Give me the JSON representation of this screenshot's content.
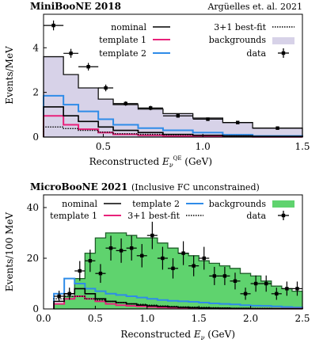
{
  "chart_data": [
    {
      "type": "step",
      "title": "MiniBooNE 2018",
      "subtitle": "Argüelles et. al. 2021",
      "xlabel": "Reconstructed E_ν^QE (GeV)",
      "ylabel": "Events/MeV",
      "xlim": [
        0.2,
        1.5
      ],
      "ylim": [
        0,
        5.5
      ],
      "xticks": [
        0.5,
        1.0,
        1.5
      ],
      "xtick_labels": [
        "0.5",
        "1.0",
        "1.5"
      ],
      "yticks": [
        0,
        2,
        4
      ],
      "ytick_labels": [
        "0",
        "2",
        "4"
      ],
      "bin_edges": [
        0.2,
        0.3,
        0.375,
        0.475,
        0.55,
        0.675,
        0.8,
        0.95,
        1.1,
        1.25,
        1.5
      ],
      "backgrounds": [
        3.6,
        2.8,
        2.2,
        1.7,
        1.45,
        1.25,
        1.05,
        0.85,
        0.65,
        0.4
      ],
      "nominal": [
        1.35,
        0.95,
        0.7,
        0.45,
        0.3,
        0.2,
        0.12,
        0.08,
        0.05,
        0.03
      ],
      "template_1": [
        0.95,
        0.55,
        0.35,
        0.2,
        0.12,
        0.08,
        0.04,
        0.03,
        0.02,
        0.01
      ],
      "template_2": [
        1.85,
        1.45,
        1.15,
        0.8,
        0.55,
        0.4,
        0.3,
        0.2,
        0.1,
        0.05
      ],
      "best_fit": [
        0.45,
        0.38,
        0.3,
        0.22,
        0.15,
        0.12,
        0.1,
        0.08,
        0.05,
        0.03
      ],
      "data": {
        "x": [
          0.25,
          0.3375,
          0.425,
          0.5125,
          0.6125,
          0.7375,
          0.875,
          1.025,
          1.175,
          1.375
        ],
        "y": [
          5.0,
          3.75,
          3.15,
          2.2,
          1.5,
          1.3,
          0.95,
          0.8,
          0.65,
          0.4
        ],
        "xerr": [
          0.05,
          0.0375,
          0.05,
          0.0375,
          0.0625,
          0.0625,
          0.075,
          0.075,
          0.075,
          0.125
        ],
        "yerr": [
          0.22,
          0.2,
          0.17,
          0.15,
          0.1,
          0.1,
          0.08,
          0.07,
          0.06,
          0.04
        ]
      },
      "legend": {
        "left": [
          {
            "label": "nominal",
            "color": "#000000",
            "style": "line"
          },
          {
            "label": "template 1",
            "color": "#e8217a",
            "style": "line"
          },
          {
            "label": "template 2",
            "color": "#2f8ce8",
            "style": "line"
          }
        ],
        "right": [
          {
            "label": "3+1 best-fit",
            "color": "#000000",
            "style": "dotted"
          },
          {
            "label": "backgrounds",
            "color": "#d7d2e8",
            "style": "patch"
          },
          {
            "label": "data",
            "color": "#000000",
            "style": "errorbar"
          }
        ]
      },
      "colors": {
        "backgrounds_fill": "#d7d2e8",
        "backgrounds_edge": "#111111"
      }
    },
    {
      "type": "step",
      "title": "MicroBooNE 2021",
      "subtitle": "(Inclusive FC unconstrained)",
      "xlabel": "Reconstructed E_ν (GeV)",
      "ylabel": "Events/100 MeV",
      "xlim": [
        0.0,
        2.5
      ],
      "ylim": [
        0,
        45
      ],
      "xticks": [
        0.0,
        0.5,
        1.0,
        1.5,
        2.0,
        2.5
      ],
      "xtick_labels": [
        "0.0",
        "0.5",
        "1.0",
        "1.5",
        "2.0",
        "2.5"
      ],
      "yticks": [
        0,
        20,
        40
      ],
      "ytick_labels": [
        "0",
        "20",
        "40"
      ],
      "bin_edges": [
        0.1,
        0.2,
        0.3,
        0.4,
        0.5,
        0.6,
        0.7,
        0.8,
        0.9,
        1.0,
        1.1,
        1.2,
        1.3,
        1.4,
        1.5,
        1.6,
        1.7,
        1.8,
        1.9,
        2.0,
        2.1,
        2.2,
        2.3,
        2.4,
        2.5
      ],
      "backgrounds": [
        2,
        5,
        12,
        22,
        28,
        30,
        30,
        29,
        28,
        28,
        26,
        24,
        22,
        21,
        19,
        18,
        17,
        16,
        14,
        13,
        11,
        9,
        8,
        7
      ],
      "nominal": [
        3,
        6,
        8,
        6,
        4,
        3,
        2.5,
        2,
        1.5,
        1.2,
        1,
        0.8,
        0.6,
        0.5,
        0.4,
        0.3,
        0.3,
        0.2,
        0.2,
        0.1,
        0.1,
        0.1,
        0.1,
        0.1
      ],
      "template_1": [
        2,
        4,
        5,
        4,
        3,
        2,
        1.5,
        1.2,
        1,
        0.8,
        0.6,
        0.5,
        0.4,
        0.3,
        0.2,
        0.2,
        0.1,
        0.1,
        0.1,
        0.1,
        0.1,
        0.1,
        0.1,
        0.1
      ],
      "template_2": [
        6,
        12,
        10,
        8,
        7,
        6,
        5.5,
        5,
        4.5,
        4,
        3.5,
        3.2,
        3,
        2.8,
        2.5,
        2.2,
        2,
        1.8,
        1.5,
        1.3,
        1.2,
        1,
        0.8,
        0.6
      ],
      "best_fit": [
        4,
        5,
        5,
        4,
        3.5,
        3,
        2.5,
        2,
        1.8,
        1.5,
        1.2,
        1,
        0.8,
        0.7,
        0.6,
        0.5,
        0.4,
        0.3,
        0.3,
        0.2,
        0.2,
        0.1,
        0.1,
        0.1
      ],
      "data": {
        "x": [
          0.15,
          0.25,
          0.35,
          0.45,
          0.55,
          0.65,
          0.75,
          0.85,
          0.95,
          1.05,
          1.15,
          1.25,
          1.35,
          1.45,
          1.55,
          1.65,
          1.75,
          1.85,
          1.95,
          2.05,
          2.15,
          2.25,
          2.35,
          2.45
        ],
        "y": [
          5,
          6,
          15,
          19,
          14,
          24,
          23,
          24,
          21,
          29,
          20,
          16,
          22,
          17,
          20,
          13,
          13,
          11,
          6,
          10,
          10,
          6,
          8,
          8
        ],
        "xerr": [
          0.05,
          0.05,
          0.05,
          0.05,
          0.05,
          0.05,
          0.05,
          0.05,
          0.05,
          0.05,
          0.05,
          0.05,
          0.05,
          0.05,
          0.05,
          0.05,
          0.05,
          0.05,
          0.05,
          0.05,
          0.05,
          0.05,
          0.05,
          0.05
        ],
        "yerr": [
          2.2,
          2.4,
          3.9,
          4.4,
          3.7,
          4.9,
          4.8,
          4.9,
          4.6,
          5.4,
          4.5,
          4.0,
          4.7,
          4.1,
          4.5,
          3.6,
          3.6,
          3.3,
          2.4,
          3.2,
          3.2,
          2.4,
          2.8,
          2.8
        ]
      },
      "legend": {
        "items": [
          {
            "label": "nominal",
            "color": "#000000",
            "style": "line"
          },
          {
            "label": "template 2",
            "color": "#2f8ce8",
            "style": "line"
          },
          {
            "label": "backgrounds",
            "color": "#5fd36e",
            "style": "patch"
          },
          {
            "label": "template 1",
            "color": "#e8217a",
            "style": "line"
          },
          {
            "label": "3+1 best-fit",
            "color": "#000000",
            "style": "dotted"
          },
          {
            "label": "data",
            "color": "#000000",
            "style": "errorbar"
          }
        ]
      },
      "colors": {
        "backgrounds_fill": "#5fd36e",
        "backgrounds_edge": "#1f5f2a"
      }
    }
  ]
}
